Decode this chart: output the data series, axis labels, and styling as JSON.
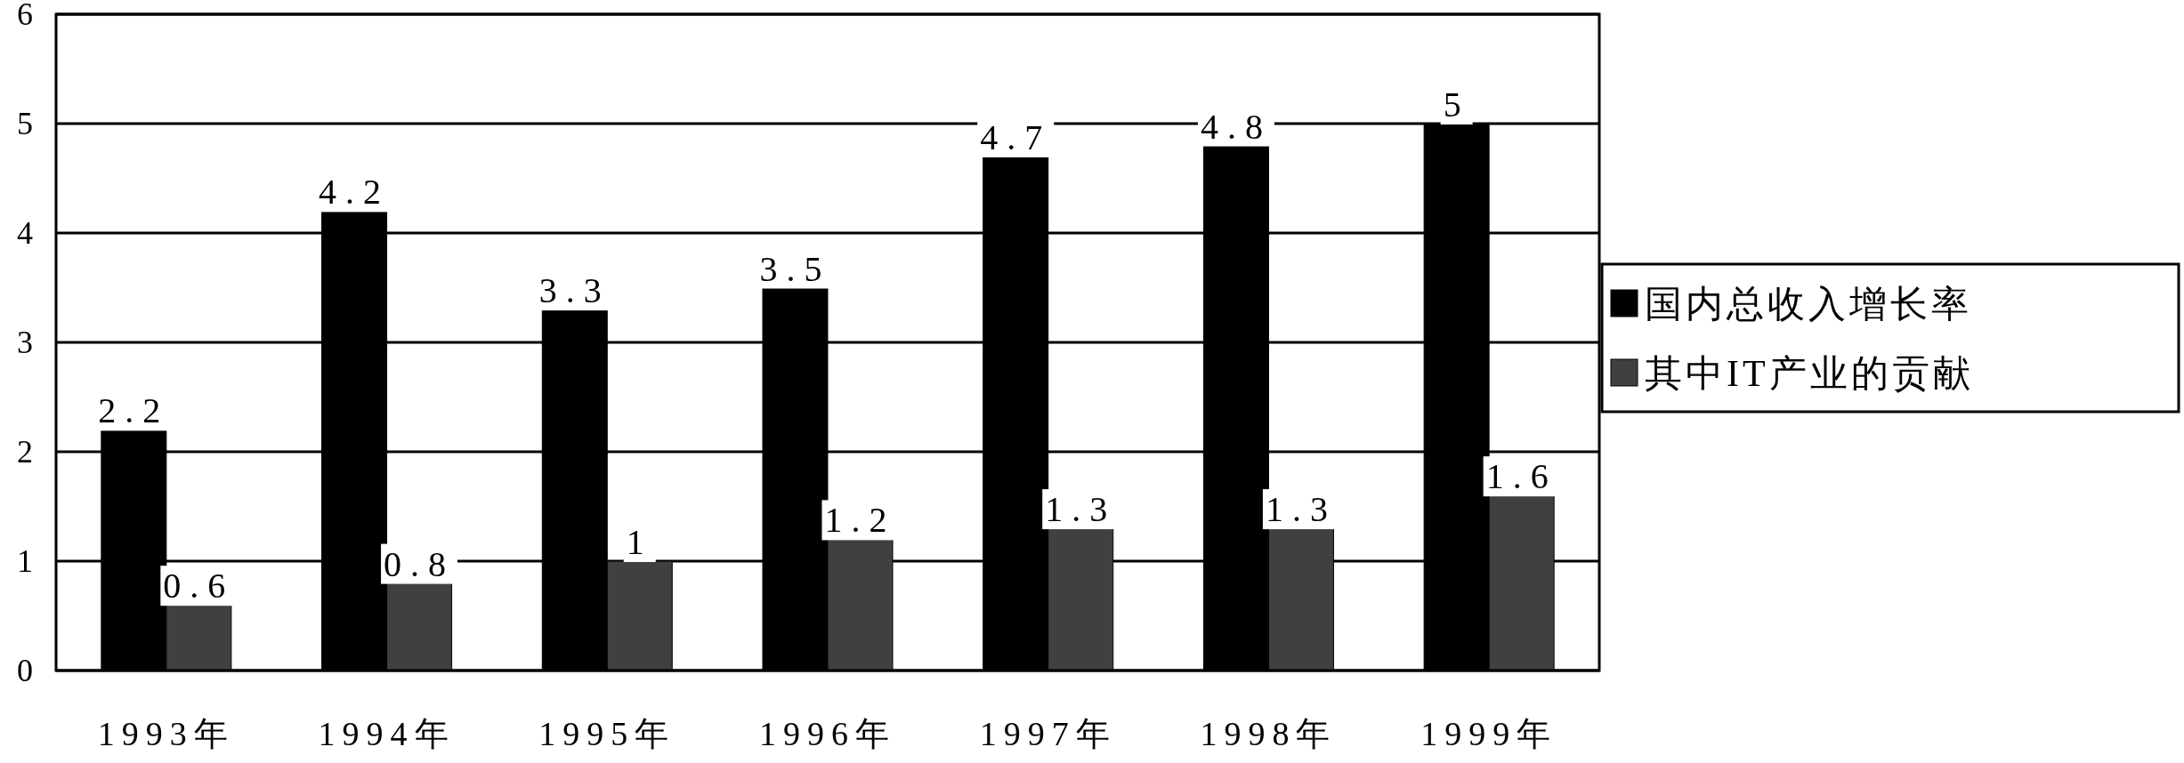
{
  "chart_data": {
    "type": "bar",
    "categories": [
      "1993年",
      "1994年",
      "1995年",
      "1996年",
      "1997年",
      "1998年",
      "1999年"
    ],
    "series": [
      {
        "name": "国内总收入增长率",
        "color": "#000000",
        "values": [
          2.2,
          4.2,
          3.3,
          3.5,
          4.7,
          4.8,
          5
        ]
      },
      {
        "name": "其中IT产业的贡献",
        "color": "#404040",
        "values": [
          0.6,
          0.8,
          1,
          1.2,
          1.3,
          1.3,
          1.6
        ]
      }
    ],
    "ylim": [
      0,
      6
    ],
    "yticks": [
      0,
      1,
      2,
      3,
      4,
      5,
      6
    ],
    "grid": "y",
    "legend": "right",
    "data_labels": true
  }
}
